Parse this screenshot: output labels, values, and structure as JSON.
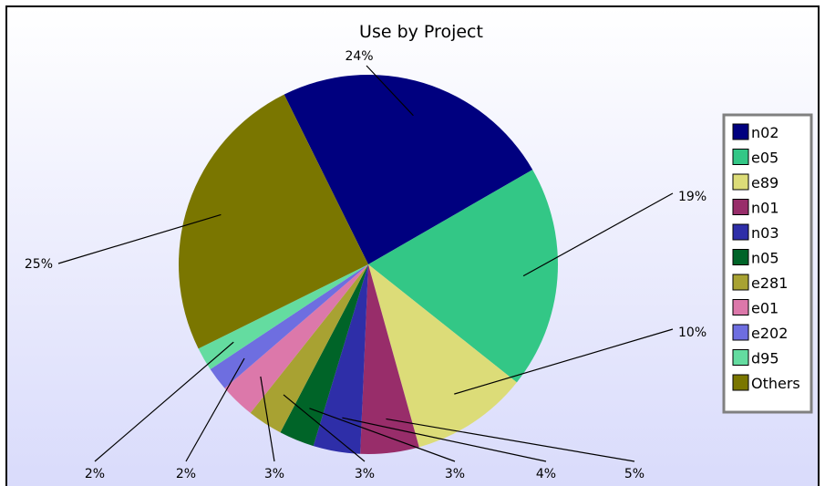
{
  "chart_data": {
    "type": "pie",
    "title": "Use by Project",
    "legend_position": "right",
    "slices": [
      {
        "label": "n02",
        "value": 24,
        "display": "24%",
        "color": "#00007f"
      },
      {
        "label": "e05",
        "value": 19,
        "display": "19%",
        "color": "#33c786"
      },
      {
        "label": "e89",
        "value": 10,
        "display": "10%",
        "color": "#dcdc78"
      },
      {
        "label": "n01",
        "value": 5,
        "display": "5%",
        "color": "#982d6a"
      },
      {
        "label": "n03",
        "value": 4,
        "display": "4%",
        "color": "#2e2ea8"
      },
      {
        "label": "n05",
        "value": 3,
        "display": "3%",
        "color": "#006428"
      },
      {
        "label": "e281",
        "value": 3,
        "display": "3%",
        "color": "#a8a232"
      },
      {
        "label": "e01",
        "value": 3,
        "display": "3%",
        "color": "#dc78aa"
      },
      {
        "label": "e202",
        "value": 2,
        "display": "2%",
        "color": "#6e6ee0"
      },
      {
        "label": "d95",
        "value": 2,
        "display": "2%",
        "color": "#64dca0"
      },
      {
        "label": "Others",
        "value": 25,
        "display": "25%",
        "color": "#7a7600"
      }
    ]
  }
}
